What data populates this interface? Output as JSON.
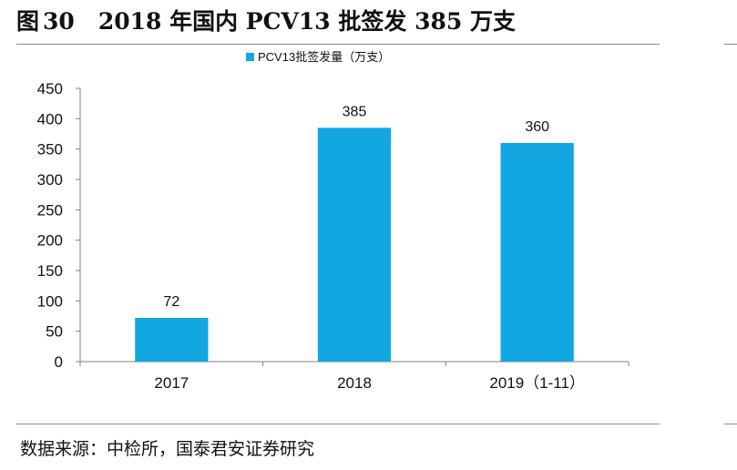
{
  "figure": {
    "label": "图",
    "number": "30",
    "title": "2018 年国内 PCV13 批签发 385 万支",
    "source": "数据来源：中检所，国泰君安证券研究"
  },
  "colors": {
    "bar": "#12A7E0",
    "axis": "#808080",
    "text": "#111111"
  },
  "chart_data": {
    "type": "bar",
    "categories": [
      "2017",
      "2018",
      "2019（1-11）"
    ],
    "series": [
      {
        "name": "PCV13批签发量（万支）",
        "values": [
          72,
          385,
          360
        ]
      }
    ],
    "data_labels": [
      "72",
      "385",
      "360"
    ],
    "ylim": [
      0,
      450
    ],
    "yticks": [
      0,
      50,
      100,
      150,
      200,
      250,
      300,
      350,
      400,
      450
    ],
    "legend": "top-center",
    "grid": false
  }
}
